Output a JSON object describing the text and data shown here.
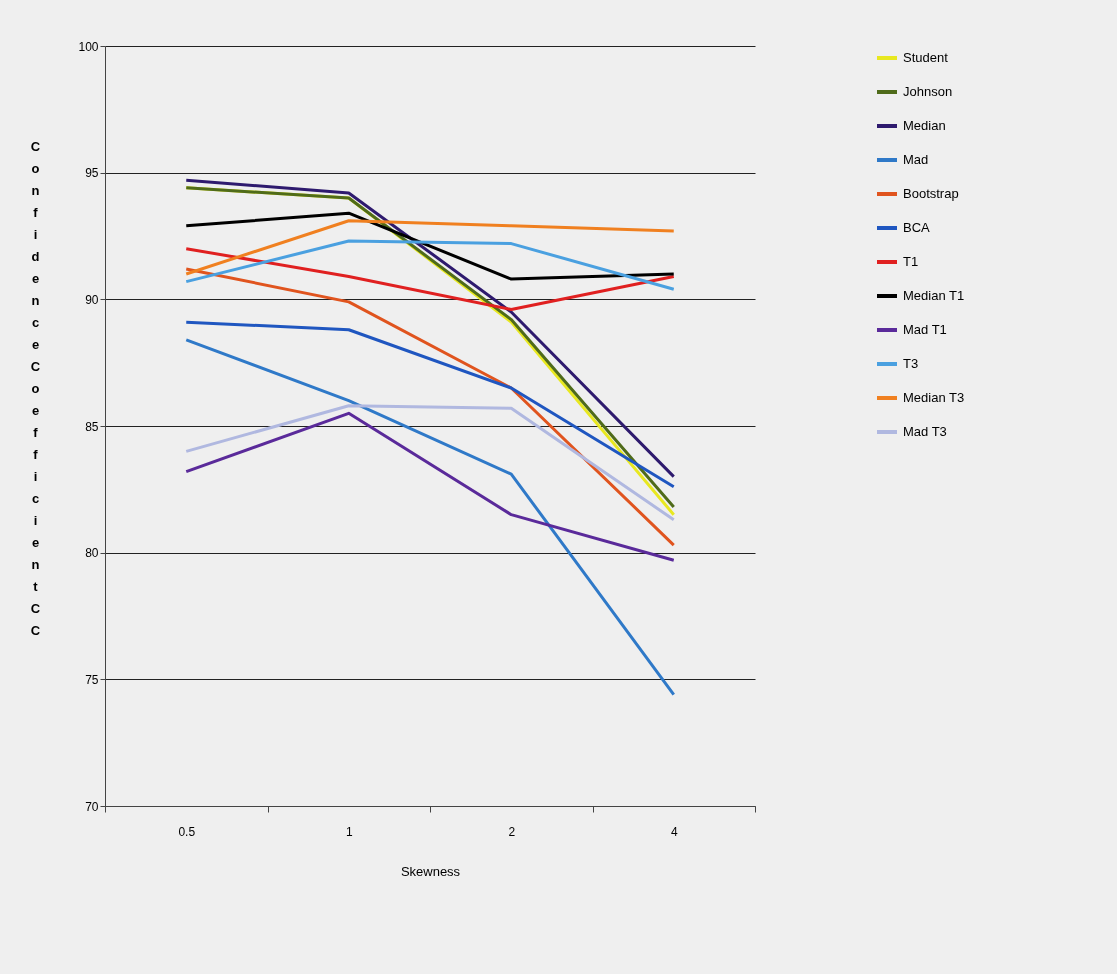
{
  "chart_data": {
    "type": "line",
    "xlabel": "Skewness",
    "ylabel": "Confidence Coefficient CC",
    "categories": [
      "0.5",
      "1",
      "2",
      "4"
    ],
    "ylim": [
      70,
      100
    ],
    "yticks": [
      70,
      75,
      80,
      85,
      90,
      95,
      100
    ],
    "grid": "y",
    "legend": "right",
    "marker": "none",
    "line_style": "solid",
    "series": [
      {
        "name": "Student",
        "color": "#e8e820",
        "values": [
          94.4,
          94.0,
          89.1,
          81.5
        ]
      },
      {
        "name": "Johnson",
        "color": "#4f6b1a",
        "values": [
          94.4,
          94.0,
          89.2,
          81.8
        ]
      },
      {
        "name": "Median",
        "color": "#2e1a6e",
        "values": [
          94.7,
          94.2,
          89.5,
          83.0
        ]
      },
      {
        "name": "Mad",
        "color": "#2f79c8",
        "values": [
          88.4,
          86.0,
          83.1,
          74.4
        ]
      },
      {
        "name": "Bootstrap",
        "color": "#e0541e",
        "values": [
          91.2,
          89.9,
          86.5,
          80.3
        ]
      },
      {
        "name": "BCA",
        "color": "#1f56c0",
        "values": [
          89.1,
          88.8,
          86.5,
          82.6
        ]
      },
      {
        "name": "T1",
        "color": "#e02020",
        "values": [
          92.0,
          90.9,
          89.6,
          90.9
        ]
      },
      {
        "name": "Median T1",
        "color": "#000000",
        "values": [
          92.9,
          93.4,
          90.8,
          91.0
        ]
      },
      {
        "name": "Mad T1",
        "color": "#5a2a9a",
        "values": [
          83.2,
          85.5,
          81.5,
          79.7
        ]
      },
      {
        "name": "T3",
        "color": "#4aa0e0",
        "values": [
          90.7,
          92.3,
          92.2,
          90.4
        ]
      },
      {
        "name": "Median T3",
        "color": "#f08020",
        "values": [
          91.0,
          93.1,
          92.9,
          92.7
        ]
      },
      {
        "name": "Mad T3",
        "color": "#b0b8e0",
        "values": [
          84.0,
          85.8,
          85.7,
          81.3
        ]
      }
    ]
  }
}
